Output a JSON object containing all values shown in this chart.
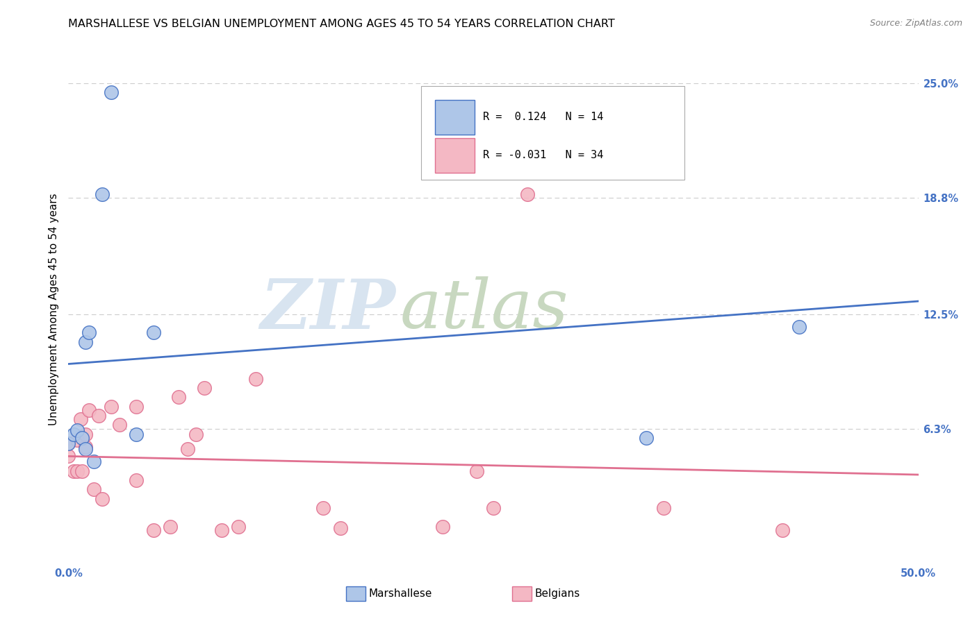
{
  "title": "MARSHALLESE VS BELGIAN UNEMPLOYMENT AMONG AGES 45 TO 54 YEARS CORRELATION CHART",
  "source": "Source: ZipAtlas.com",
  "ylabel": "Unemployment Among Ages 45 to 54 years",
  "xlim": [
    0.0,
    0.5
  ],
  "ylim": [
    -0.01,
    0.265
  ],
  "xticks": [
    0.0,
    0.1,
    0.2,
    0.3,
    0.4,
    0.5
  ],
  "xtick_labels": [
    "0.0%",
    "",
    "",
    "",
    "",
    "50.0%"
  ],
  "ytick_labels_right": [
    "25.0%",
    "18.8%",
    "12.5%",
    "6.3%"
  ],
  "yticks_right": [
    0.25,
    0.188,
    0.125,
    0.063
  ],
  "marshallese_R": "0.124",
  "marshallese_N": "14",
  "belgians_R": "-0.031",
  "belgians_N": "34",
  "marshallese_color": "#aec6e8",
  "belgians_color": "#f4b8c4",
  "marshallese_line_color": "#4472c4",
  "belgians_line_color": "#e07090",
  "watermark_zip": "ZIP",
  "watermark_atlas": "atlas",
  "marshallese_x": [
    0.0,
    0.003,
    0.005,
    0.008,
    0.01,
    0.01,
    0.012,
    0.015,
    0.02,
    0.025,
    0.04,
    0.05,
    0.34,
    0.43
  ],
  "marshallese_y": [
    0.055,
    0.06,
    0.062,
    0.058,
    0.052,
    0.11,
    0.115,
    0.045,
    0.19,
    0.245,
    0.06,
    0.115,
    0.058,
    0.118
  ],
  "belgians_x": [
    0.0,
    0.0,
    0.003,
    0.005,
    0.005,
    0.007,
    0.008,
    0.01,
    0.01,
    0.012,
    0.015,
    0.018,
    0.02,
    0.025,
    0.03,
    0.04,
    0.04,
    0.05,
    0.06,
    0.065,
    0.07,
    0.075,
    0.08,
    0.09,
    0.1,
    0.11,
    0.15,
    0.16,
    0.22,
    0.24,
    0.25,
    0.27,
    0.35,
    0.42
  ],
  "belgians_y": [
    0.048,
    0.055,
    0.04,
    0.04,
    0.057,
    0.068,
    0.04,
    0.053,
    0.06,
    0.073,
    0.03,
    0.07,
    0.025,
    0.075,
    0.065,
    0.035,
    0.075,
    0.008,
    0.01,
    0.08,
    0.052,
    0.06,
    0.085,
    0.008,
    0.01,
    0.09,
    0.02,
    0.009,
    0.01,
    0.04,
    0.02,
    0.19,
    0.02,
    0.008
  ],
  "marshallese_line_x": [
    0.0,
    0.5
  ],
  "marshallese_line_y": [
    0.098,
    0.132
  ],
  "belgians_line_x": [
    0.0,
    0.5
  ],
  "belgians_line_y": [
    0.048,
    0.038
  ],
  "background_color": "#ffffff",
  "grid_color": "#cccccc",
  "title_fontsize": 11.5,
  "axis_label_fontsize": 11,
  "tick_fontsize": 10.5
}
